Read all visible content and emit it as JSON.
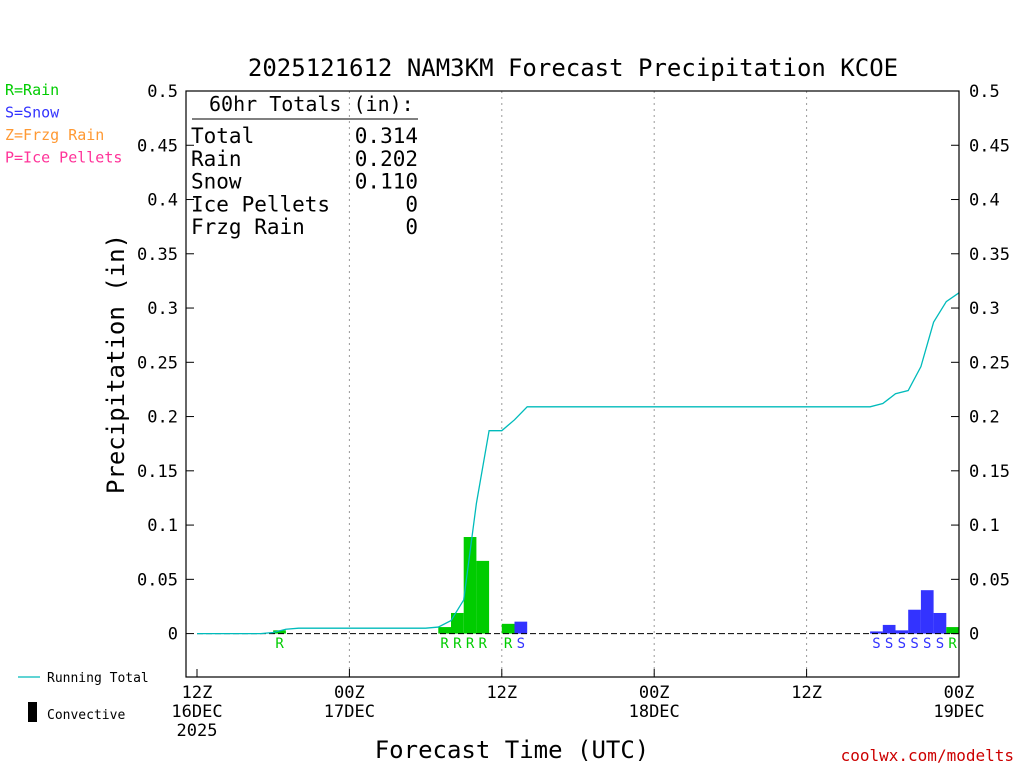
{
  "chart_data": {
    "type": "bar",
    "title": "2025121612 NAM3KM Forecast Precipitation KCOE",
    "xlabel": "Forecast Time (UTC)",
    "ylabel": "Precipitation (in)",
    "ylim": [
      -0.04,
      0.5
    ],
    "yticks": [
      0,
      0.05,
      0.1,
      0.15,
      0.2,
      0.25,
      0.3,
      0.35,
      0.4,
      0.45,
      0.5
    ],
    "ytick_labels": [
      "0",
      "0.05",
      "0.1",
      "0.15",
      "0.2",
      "0.25",
      "0.3",
      "0.35",
      "0.4",
      "0.45",
      "0.5"
    ],
    "xlim": [
      0,
      60
    ],
    "xticks": [
      {
        "hour": 0,
        "lines": [
          "12Z",
          "16DEC",
          "2025"
        ]
      },
      {
        "hour": 12,
        "lines": [
          "00Z",
          "17DEC"
        ]
      },
      {
        "hour": 24,
        "lines": [
          "12Z"
        ]
      },
      {
        "hour": 36,
        "lines": [
          "00Z",
          "18DEC"
        ]
      },
      {
        "hour": 48,
        "lines": [
          "12Z"
        ]
      },
      {
        "hour": 60,
        "lines": [
          "00Z",
          "19DEC"
        ]
      }
    ],
    "grid": "dotted vertical at 00Z/12Z",
    "legend": {
      "placement": "top-left",
      "types": [
        {
          "code": "R",
          "text": "R=Rain",
          "color": "#00cc00"
        },
        {
          "code": "S",
          "text": "S=Snow",
          "color": "#3333ff"
        },
        {
          "code": "Z",
          "text": "Z=Frzg Rain",
          "color": "#ff9933"
        },
        {
          "code": "P",
          "text": "P=Ice Pellets",
          "color": "#ff3399"
        }
      ],
      "bottom": [
        {
          "text": "Running Total",
          "color": "#00bbbb"
        },
        {
          "text": "Convective",
          "color": "#000000"
        }
      ]
    },
    "totals": {
      "header": "60hr Totals (in):",
      "rows": [
        {
          "label": "Total",
          "value": "0.314"
        },
        {
          "label": "Rain",
          "value": "0.202"
        },
        {
          "label": "Snow",
          "value": "0.110"
        },
        {
          "label": "Ice Pellets",
          "value": "0"
        },
        {
          "label": "Frzg Rain",
          "value": "0"
        }
      ]
    },
    "bars": [
      {
        "hour": 7,
        "value": 0.003,
        "type": "R"
      },
      {
        "hour": 20,
        "value": 0.006,
        "type": "R"
      },
      {
        "hour": 21,
        "value": 0.019,
        "type": "R"
      },
      {
        "hour": 22,
        "value": 0.089,
        "type": "R"
      },
      {
        "hour": 23,
        "value": 0.067,
        "type": "R"
      },
      {
        "hour": 25,
        "value": 0.009,
        "type": "R"
      },
      {
        "hour": 26,
        "value": 0.011,
        "type": "S"
      },
      {
        "hour": 54,
        "value": 0.002,
        "type": "S"
      },
      {
        "hour": 55,
        "value": 0.008,
        "type": "S"
      },
      {
        "hour": 56,
        "value": 0.003,
        "type": "S"
      },
      {
        "hour": 57,
        "value": 0.022,
        "type": "S"
      },
      {
        "hour": 58,
        "value": 0.04,
        "type": "S"
      },
      {
        "hour": 59,
        "value": 0.019,
        "type": "S"
      },
      {
        "hour": 60,
        "value": 0.006,
        "type": "R"
      }
    ],
    "running_total": {
      "name": "Running Total",
      "x": [
        0,
        5,
        6,
        7,
        8,
        18,
        19,
        20,
        21,
        22,
        23,
        24,
        25,
        26,
        27,
        53,
        54,
        55,
        56,
        57,
        58,
        59,
        60
      ],
      "y": [
        0,
        0,
        0.001,
        0.004,
        0.005,
        0.005,
        0.006,
        0.012,
        0.031,
        0.12,
        0.187,
        0.187,
        0.197,
        0.209,
        0.209,
        0.209,
        0.212,
        0.221,
        0.224,
        0.246,
        0.287,
        0.306,
        0.314
      ]
    }
  },
  "credit": "coolwx.com/modelts"
}
